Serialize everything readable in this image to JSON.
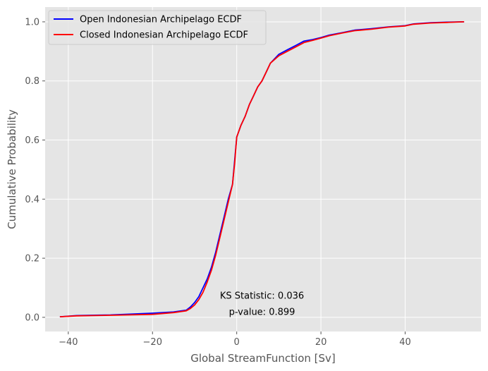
{
  "chart_data": {
    "type": "line",
    "title": "",
    "xlabel": "Global StreamFunction [Sv]",
    "ylabel": "Cumulative Probability",
    "xlim": [
      -45.5,
      58
    ],
    "ylim": [
      -0.048,
      1.05
    ],
    "xticks": [
      -40,
      -20,
      0,
      20,
      40
    ],
    "xtick_labels": [
      "−40",
      "−20",
      "0",
      "20",
      "40"
    ],
    "yticks": [
      0.0,
      0.2,
      0.4,
      0.6,
      0.8,
      1.0
    ],
    "ytick_labels": [
      "0.0",
      "0.2",
      "0.4",
      "0.6",
      "0.8",
      "1.0"
    ],
    "grid": true,
    "legend_position": "top-left",
    "background": "#e5e5e5",
    "series": [
      {
        "name": "Open Indonesian Archipelago ECDF",
        "color": "#0000ff",
        "x": [
          -42,
          -38,
          -30,
          -20,
          -15,
          -12,
          -11,
          -10,
          -9,
          -8,
          -7,
          -6,
          -5,
          -4,
          -3,
          -2,
          -1,
          -0.5,
          0,
          1,
          2,
          3,
          4,
          5,
          6,
          7,
          8,
          10,
          12,
          14,
          16,
          18,
          20,
          22,
          25,
          28,
          32,
          36,
          40,
          42,
          46,
          50,
          54
        ],
        "y": [
          0.002,
          0.006,
          0.008,
          0.014,
          0.018,
          0.024,
          0.035,
          0.05,
          0.07,
          0.1,
          0.13,
          0.17,
          0.22,
          0.28,
          0.34,
          0.4,
          0.45,
          0.53,
          0.61,
          0.65,
          0.68,
          0.72,
          0.75,
          0.78,
          0.8,
          0.83,
          0.86,
          0.89,
          0.905,
          0.92,
          0.935,
          0.94,
          0.947,
          0.955,
          0.963,
          0.972,
          0.977,
          0.983,
          0.987,
          0.993,
          0.997,
          0.999,
          1.0
        ]
      },
      {
        "name": "Closed Indonesian Archipelago ECDF",
        "color": "#ff0000",
        "x": [
          -42,
          -38,
          -30,
          -20,
          -15,
          -12,
          -11,
          -10,
          -9,
          -8,
          -7,
          -6,
          -5,
          -4,
          -3,
          -2,
          -1,
          -0.5,
          0,
          1,
          2,
          3,
          4,
          5,
          6,
          7,
          8,
          10,
          12,
          14,
          16,
          18,
          20,
          22,
          25,
          28,
          32,
          36,
          40,
          42,
          46,
          50,
          54
        ],
        "y": [
          0.002,
          0.005,
          0.007,
          0.01,
          0.016,
          0.022,
          0.03,
          0.042,
          0.06,
          0.085,
          0.12,
          0.16,
          0.21,
          0.27,
          0.33,
          0.39,
          0.45,
          0.52,
          0.61,
          0.65,
          0.68,
          0.72,
          0.75,
          0.78,
          0.8,
          0.83,
          0.86,
          0.885,
          0.9,
          0.915,
          0.93,
          0.937,
          0.945,
          0.953,
          0.962,
          0.97,
          0.975,
          0.982,
          0.986,
          0.992,
          0.996,
          0.998,
          1.0
        ]
      }
    ],
    "annotations": [
      {
        "text": "KS Statistic: 0.036",
        "x": 6,
        "y": 0.063
      },
      {
        "text": "p-value: 0.899",
        "x": 6,
        "y": 0.008
      }
    ]
  }
}
